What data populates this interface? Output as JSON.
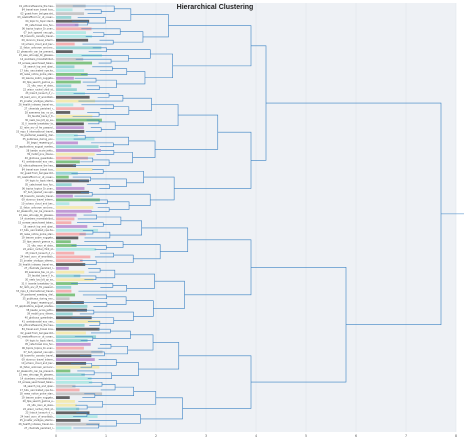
{
  "chart_data": {
    "type": "dendrogram",
    "orientation": "horizontal",
    "title": "Hierarchical Clustering",
    "xlim": [
      0,
      8
    ],
    "x_ticks": [
      "0",
      "1",
      "2",
      "3",
      "4",
      "5",
      "6",
      "7",
      "8"
    ],
    "grid": true,
    "background_color": "#eef1f5",
    "link_color": "#3b82c4",
    "cluster_colors": [
      "#f6a5a5",
      "#a8e6e2",
      "#6dbb6d",
      "#4a4a4a",
      "#c0c0c0",
      "#f3e9a5",
      "#b98acf",
      "#8ad0cf"
    ],
    "leaves": [
      "01_ethnicsthesome_the hea...",
      "84_travel eum_travel loos...",
      "02_guest from_bel gew.dxt...",
      "03_newtrafficom or_ut_ocean...",
      "04_topic to_topic ident...",
      "05_cate.travel loos_fuo...",
      "06_topics_topica_1k.unan...",
      "07_buh_spaced_neu.spk...",
      "08_travel-to_canada_travel...",
      "09_dunroco_travel_interm...",
      "10_schaco_cloud_and_bec...",
      "11_fatuo_unknown_and.enc...",
      "12_pleasonfo_can_be_prevent...",
      "13_wau_aho.app_lik_glasses...",
      "14_slumbers_moredistribut...",
      "15_soreae_searchoeet_taken...",
      "16_search_lop_and_qlasi...",
      "17_tutu_vaccinated_npe.ha...",
      "18_news_notice_poloe_stan...",
      "19_laaone_zubm_nuggeta...",
      "20_tipe_search_gemoa_e...",
      "21_vitu_raun_el_slaia...",
      "22_wiaor_ruchel_chidi_st...",
      "23_linisch_lonaurh_d_c...",
      "24_lead_ucnn_of_wooddsib...",
      "25_jnnatar_sivdigus_stiemo...",
      "26_health_indexes_travel-ne...",
      "27_chemists_perished_r...",
      "28_aaeneres_tau_no_pr...",
      "29_tauidal_bane_ll_tr...",
      "30_raelo_tau_blt_qx_sa...",
      "31_ll_inserte_breakstev_la...",
      "32_ralm_arv_of_fm_paesool...",
      "33_mpu_ll_international_travel...",
      "34_pantsmel_saeabng_diel...",
      "35_publicaus_during_eno...",
      "36_bagui_reqeaing_pl...",
      "37_applications_august_acedes...",
      "38_baebo_acoia_jehtu...",
      "39_mobili_pnu_diiene...",
      "40_gloibuus_guesdiabe...",
      "41_unelabonalal_euo_oeo..."
    ]
  }
}
